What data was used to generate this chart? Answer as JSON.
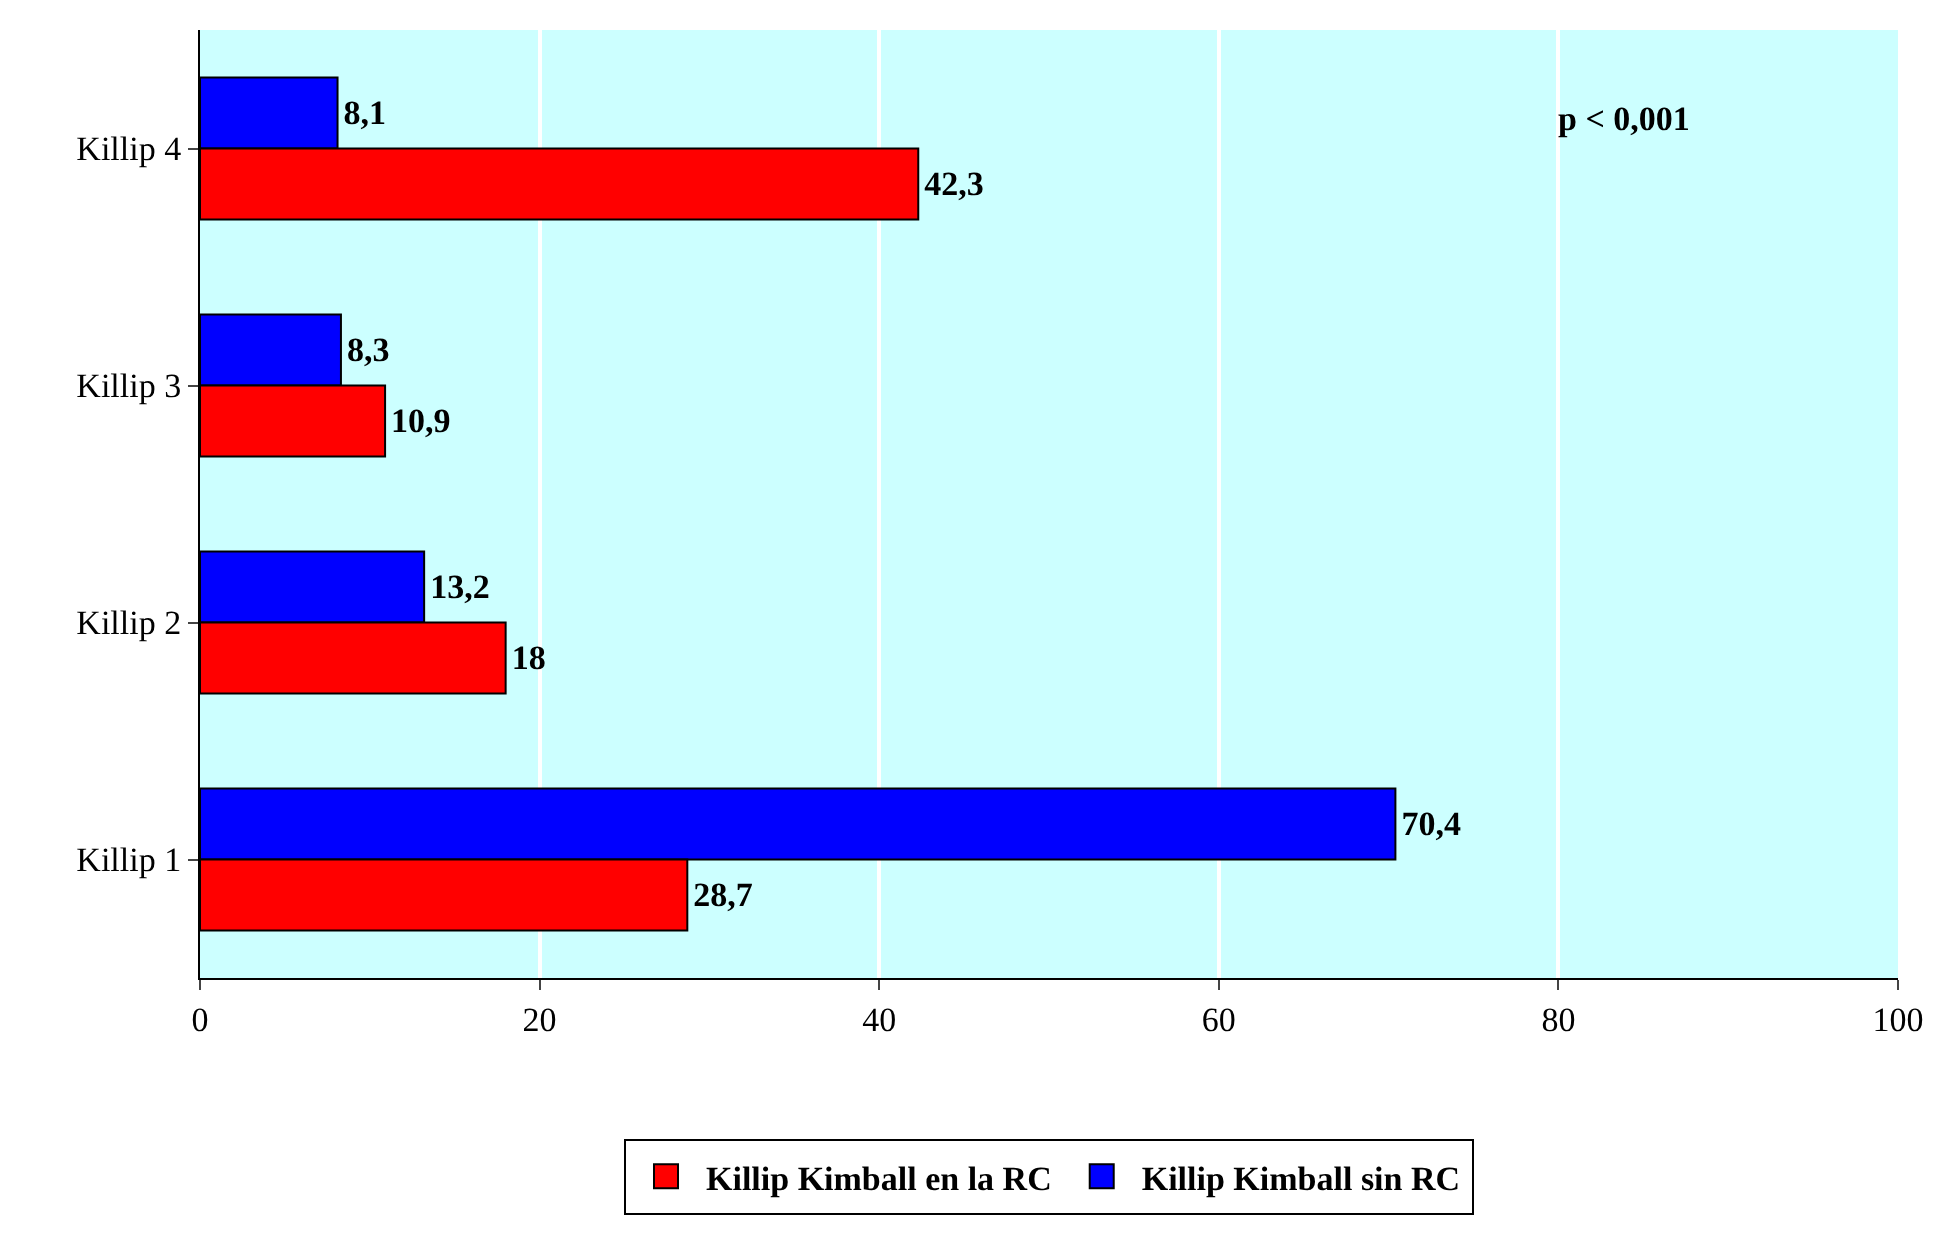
{
  "chart_data": {
    "type": "bar",
    "orientation": "horizontal",
    "categories": [
      "Killip 4",
      "Killip 3",
      "Killip 2",
      "Killip 1"
    ],
    "series": [
      {
        "name": "Killip Kimball en la RC",
        "color": "#ff0000",
        "values": [
          42.3,
          10.9,
          18,
          28.7
        ],
        "value_labels": [
          "42,3",
          "10,9",
          "18",
          "28,7"
        ]
      },
      {
        "name": "Killip Kimball sin RC",
        "color": "#0000ff",
        "values": [
          8.1,
          8.3,
          13.2,
          70.4
        ],
        "value_labels": [
          "8,1",
          "8,3",
          "13,2",
          "70,4"
        ]
      }
    ],
    "xlim": [
      0,
      100
    ],
    "xticks": [
      0,
      20,
      40,
      60,
      80,
      100
    ],
    "grid": "x",
    "legend": "bottom",
    "annotations": [
      "p < 0,001"
    ]
  }
}
